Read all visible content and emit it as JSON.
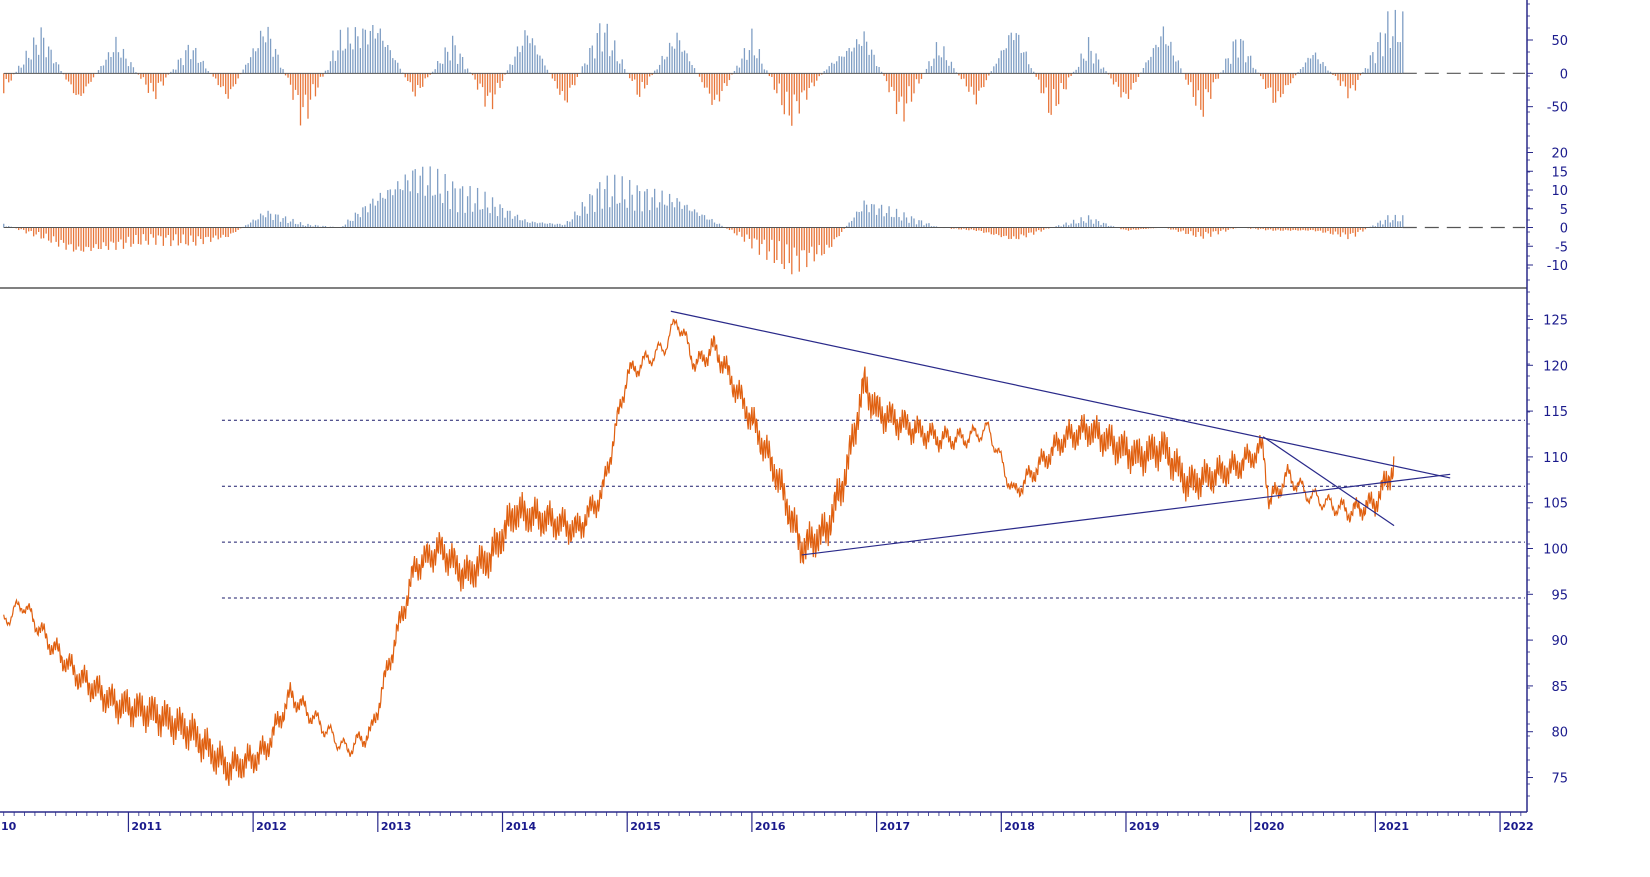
{
  "colors": {
    "positive": "#7f9ec4",
    "negative": "#e8763a",
    "price": "#e06010",
    "axis": "#2a2a8a",
    "trendline": "#2a2a8a",
    "reference": "#1a1a6a"
  },
  "chart_data": [
    {
      "type": "bar",
      "panel": "top-oscillator",
      "ylim": [
        -100,
        110
      ],
      "ticks": [
        50,
        0,
        -50
      ],
      "tick_labels": [
        "50",
        "0",
        "-50"
      ],
      "baseline": 0,
      "x_range": [
        2010,
        2022.2
      ],
      "values_description_note": "",
      "series": [
        {
          "x": [
            2010.0,
            2010.3,
            2010.6,
            2010.9,
            2011.2,
            2011.5,
            2011.8,
            2012.1,
            2012.4,
            2012.7,
            2013.0,
            2013.3,
            2013.6,
            2013.9,
            2014.2,
            2014.5,
            2014.8,
            2015.1,
            2015.4,
            2015.7,
            2016.0,
            2016.3,
            2016.6,
            2016.9,
            2017.2,
            2017.5,
            2017.8,
            2018.1,
            2018.4,
            2018.7,
            2019.0,
            2019.3,
            2019.6,
            2019.9,
            2020.2,
            2020.5,
            2020.8,
            2021.1
          ],
          "values": [
            -30,
            70,
            -50,
            55,
            -40,
            50,
            -45,
            85,
            -80,
            60,
            85,
            -40,
            55,
            -60,
            80,
            -55,
            85,
            -40,
            70,
            -60,
            60,
            -80,
            10,
            70,
            -75,
            50,
            -50,
            85,
            -70,
            50,
            -50,
            80,
            -70,
            65,
            -55,
            40,
            -40,
            85
          ]
        }
      ]
    },
    {
      "type": "bar",
      "panel": "middle-oscillator",
      "ylim": [
        -14,
        22
      ],
      "ticks": [
        20,
        15,
        10,
        5,
        0,
        -5,
        -10
      ],
      "tick_labels": [
        "20",
        "15",
        "10",
        "5",
        "0",
        "-5",
        "-10"
      ],
      "baseline": 0,
      "series": [
        {
          "x": [
            2010.0,
            2010.3,
            2010.6,
            2010.9,
            2011.2,
            2011.5,
            2011.8,
            2012.1,
            2012.4,
            2012.7,
            2013.0,
            2013.3,
            2013.6,
            2013.9,
            2014.2,
            2014.5,
            2014.8,
            2015.1,
            2015.4,
            2015.7,
            2016.0,
            2016.3,
            2016.6,
            2016.9,
            2017.2,
            2017.5,
            2017.8,
            2018.1,
            2018.4,
            2018.7,
            2019.0,
            2019.3,
            2019.6,
            2019.9,
            2020.2,
            2020.5,
            2020.8,
            2021.1
          ],
          "values": [
            1,
            -3,
            -8,
            -6,
            -4,
            -5,
            -3,
            5,
            1,
            0,
            10,
            18,
            12,
            8,
            2,
            1,
            13,
            11,
            9,
            2,
            -5,
            -12,
            -8,
            8,
            4,
            0,
            -1,
            -4,
            0,
            3,
            -1,
            0,
            -3,
            0,
            -1,
            -1,
            -3,
            3
          ]
        }
      ]
    },
    {
      "type": "line",
      "panel": "price",
      "ylim": [
        72,
        128
      ],
      "ticks": [
        125,
        120,
        115,
        110,
        105,
        100,
        95,
        90,
        85,
        80,
        75
      ],
      "tick_labels": [
        "125",
        "120",
        "115",
        "110",
        "105",
        "100",
        "95",
        "90",
        "85",
        "80",
        "75"
      ],
      "x": [
        2010.0,
        2010.15,
        2010.35,
        2010.6,
        2010.9,
        2011.2,
        2011.5,
        2011.8,
        2012.0,
        2012.1,
        2012.3,
        2012.6,
        2012.75,
        2012.95,
        2013.1,
        2013.3,
        2013.5,
        2013.7,
        2013.9,
        2014.1,
        2014.4,
        2014.6,
        2014.8,
        2015.0,
        2015.1,
        2015.3,
        2015.4,
        2015.55,
        2015.7,
        2015.85,
        2016.0,
        2016.2,
        2016.4,
        2016.6,
        2016.75,
        2016.9,
        2017.0,
        2017.3,
        2017.5,
        2017.7,
        2017.9,
        2018.1,
        2018.3,
        2018.5,
        2018.7,
        2018.95,
        2019.1,
        2019.3,
        2019.5,
        2019.7,
        2019.9,
        2020.1,
        2020.15,
        2020.3,
        2020.45,
        2020.6,
        2020.8,
        2021.0,
        2021.15
      ],
      "y": [
        92,
        94,
        90,
        86,
        83,
        82,
        80,
        76,
        77,
        78,
        84,
        80,
        78,
        80,
        88,
        98,
        100,
        97,
        99,
        104,
        103,
        102,
        106,
        119,
        120,
        122,
        125,
        120,
        122,
        118,
        114,
        108,
        100,
        102,
        108,
        118,
        115,
        113,
        112,
        112,
        113,
        106,
        109,
        112,
        113,
        111,
        110,
        111,
        107,
        108,
        109,
        111,
        105,
        108,
        106,
        105,
        104,
        105,
        109
      ],
      "reference_lines": [
        114.0,
        106.8,
        100.7,
        94.6
      ],
      "trendlines": [
        {
          "x": [
            2015.35,
            2021.6
          ],
          "y": [
            125.9,
            107.7
          ]
        },
        {
          "x": [
            2016.4,
            2021.6
          ],
          "y": [
            99.3,
            108.1
          ]
        },
        {
          "x": [
            2020.1,
            2021.15
          ],
          "y": [
            112.2,
            102.5
          ]
        }
      ],
      "xticks": [
        "2011",
        "2012",
        "2013",
        "2014",
        "2015",
        "2016",
        "2017",
        "2018",
        "2019",
        "2020",
        "2021",
        "2022"
      ],
      "xticks_partial_left": "10"
    }
  ]
}
